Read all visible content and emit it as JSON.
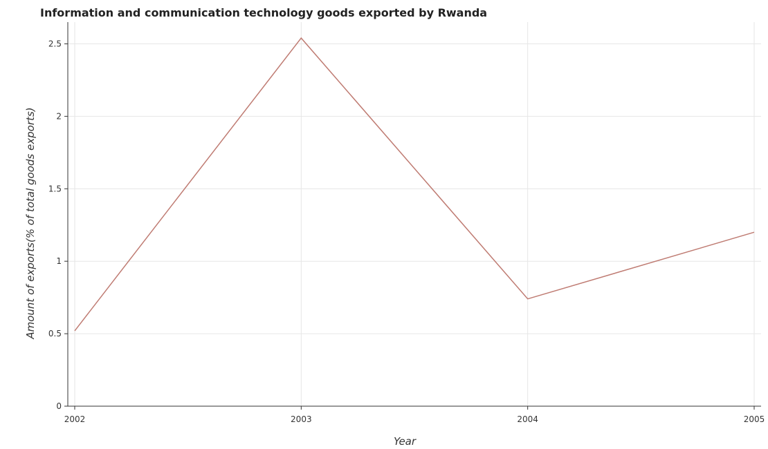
{
  "chart_data": {
    "type": "line",
    "title": "Information and communication technology goods exported by Rwanda",
    "xlabel": "Year",
    "ylabel": "Amount of exports(% of total goods exports)",
    "categories": [
      "2002",
      "2003",
      "2004",
      "2005"
    ],
    "series": [
      {
        "values": [
          0.52,
          2.54,
          0.74,
          1.2
        ]
      }
    ],
    "ylim": [
      0,
      2.65
    ],
    "yticks": [
      0,
      0.5,
      1,
      1.5,
      2,
      2.5
    ],
    "ytick_labels": [
      "0",
      "0.5",
      "1",
      "1.5",
      "2",
      "2.5"
    ],
    "grid": true,
    "line_color": "#bf7b72"
  }
}
